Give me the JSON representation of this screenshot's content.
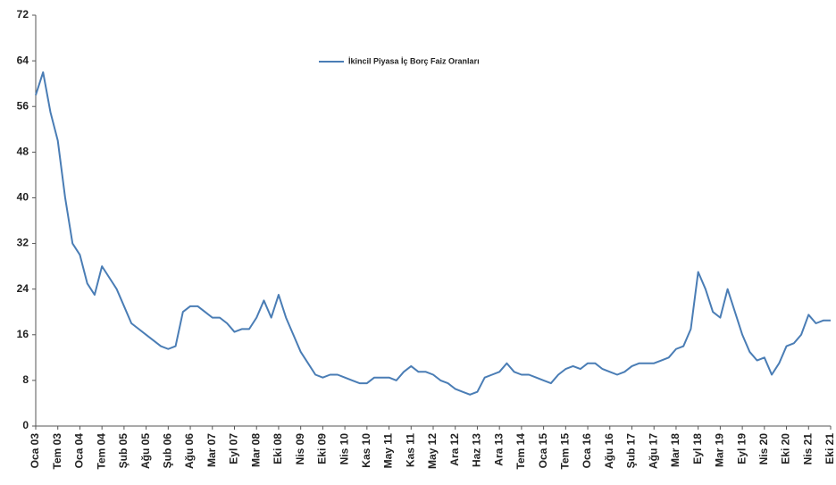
{
  "chart_data": {
    "type": "line",
    "categories": [
      "Oca 03",
      null,
      null,
      "Tem 03",
      null,
      null,
      "Oca 04",
      null,
      null,
      "Tem 04",
      null,
      null,
      "Şub 05",
      null,
      null,
      "Ağu 05",
      null,
      null,
      "Şub 06",
      null,
      null,
      "Ağu 06",
      null,
      null,
      "Mar 07",
      null,
      null,
      "Eyl 07",
      null,
      null,
      "Mar 08",
      null,
      null,
      "Eki 08",
      null,
      null,
      "Nis 09",
      null,
      null,
      "Eki 09",
      null,
      null,
      "Nis 10",
      null,
      null,
      "Kas 10",
      null,
      null,
      "May 11",
      null,
      null,
      "Kas 11",
      null,
      null,
      "May 12",
      null,
      null,
      "Ara 12",
      null,
      null,
      "Haz 13",
      null,
      null,
      "Ara 13",
      null,
      null,
      "Tem 14",
      null,
      null,
      "Oca 15",
      null,
      null,
      "Tem 15",
      null,
      null,
      "Oca 16",
      null,
      null,
      "Ağu 16",
      null,
      null,
      "Şub 17",
      null,
      null,
      "Ağu 17",
      null,
      null,
      "Mar 18",
      null,
      null,
      "Eyl 18",
      null,
      null,
      "Mar 19",
      null,
      null,
      "Eyl 19",
      null,
      null,
      "Nis 20",
      null,
      null,
      "Eki 20",
      null,
      null,
      "Nis 21",
      null,
      null,
      "Eki 21"
    ],
    "series": [
      {
        "name": "İkincil Piyasa İç Borç Faiz Oranları",
        "color": "#4a7db5",
        "values": [
          58,
          62,
          55,
          50,
          40,
          32,
          30,
          25,
          23,
          28,
          26,
          24,
          21,
          18,
          17,
          16,
          15,
          14,
          13.5,
          14,
          20,
          21,
          21,
          20,
          19,
          19,
          18,
          16.5,
          17,
          17,
          19,
          22,
          19,
          23,
          19,
          16,
          13,
          11,
          9,
          8.5,
          9,
          9,
          8.5,
          8,
          7.5,
          7.5,
          8.5,
          8.5,
          8.5,
          8,
          9.5,
          10.5,
          9.5,
          9.5,
          9,
          8,
          7.5,
          6.5,
          6,
          5.5,
          6,
          8.5,
          9,
          9.5,
          11,
          9.5,
          9,
          9,
          8.5,
          8,
          7.5,
          9,
          10,
          10.5,
          10,
          11,
          11,
          10,
          9.5,
          9,
          9.5,
          10.5,
          11,
          11,
          11,
          11.5,
          12,
          13.5,
          14,
          17,
          27,
          24,
          20,
          19,
          24,
          20,
          16,
          13,
          11.5,
          12,
          9,
          11,
          14,
          14.5,
          16,
          19.5,
          18,
          18.5,
          18.5
        ]
      }
    ],
    "ylim": [
      0,
      72
    ],
    "yticks": [
      0,
      8,
      16,
      24,
      32,
      40,
      48,
      56,
      64,
      72
    ],
    "grid": false,
    "legend": "top"
  }
}
